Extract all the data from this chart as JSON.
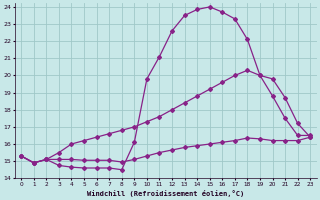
{
  "xlabel": "Windchill (Refroidissement éolien,°C)",
  "background_color": "#c8e8e8",
  "grid_color": "#a0c8c8",
  "line_color": "#882288",
  "xlim": [
    -0.5,
    23.5
  ],
  "ylim": [
    14,
    24.2
  ],
  "xticks": [
    0,
    1,
    2,
    3,
    4,
    5,
    6,
    7,
    8,
    9,
    10,
    11,
    12,
    13,
    14,
    15,
    16,
    17,
    18,
    19,
    20,
    21,
    22,
    23
  ],
  "yticks": [
    14,
    15,
    16,
    17,
    18,
    19,
    20,
    21,
    22,
    23,
    24
  ],
  "line1_x": [
    0,
    1,
    2,
    3,
    4,
    5,
    6,
    7,
    8,
    9,
    10,
    11,
    12,
    13,
    14,
    15,
    16,
    17,
    18,
    19,
    20,
    21,
    22,
    23
  ],
  "line1_y": [
    15.3,
    14.9,
    15.1,
    14.75,
    14.65,
    14.6,
    14.6,
    14.6,
    14.5,
    16.1,
    19.8,
    21.1,
    22.6,
    23.5,
    23.85,
    24.0,
    23.7,
    23.3,
    22.1,
    20.0,
    18.8,
    17.5,
    16.5,
    16.5
  ],
  "line2_x": [
    0,
    1,
    2,
    3,
    4,
    5,
    6,
    7,
    8,
    9,
    10,
    11,
    12,
    13,
    14,
    15,
    16,
    17,
    18,
    19,
    20,
    21,
    22,
    23
  ],
  "line2_y": [
    15.3,
    14.9,
    15.1,
    15.5,
    16.0,
    16.2,
    16.4,
    16.6,
    16.8,
    17.0,
    17.3,
    17.6,
    18.0,
    18.4,
    18.8,
    19.2,
    19.6,
    20.0,
    20.3,
    20.0,
    19.8,
    18.7,
    17.2,
    16.4
  ],
  "line3_x": [
    0,
    1,
    2,
    3,
    4,
    5,
    6,
    7,
    8,
    9,
    10,
    11,
    12,
    13,
    14,
    15,
    16,
    17,
    18,
    19,
    20,
    21,
    22,
    23
  ],
  "line3_y": [
    15.3,
    14.9,
    15.1,
    15.1,
    15.1,
    15.05,
    15.05,
    15.05,
    14.95,
    15.1,
    15.3,
    15.5,
    15.65,
    15.8,
    15.9,
    16.0,
    16.1,
    16.2,
    16.35,
    16.3,
    16.2,
    16.2,
    16.2,
    16.4
  ],
  "marker": "D",
  "markersize": 2.0,
  "linewidth": 0.9
}
